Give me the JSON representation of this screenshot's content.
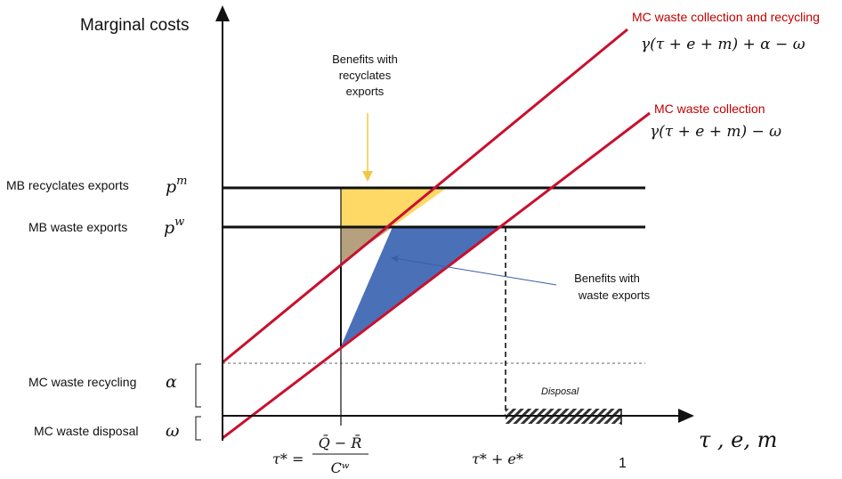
{
  "axes": {
    "y_title": "Marginal costs",
    "x_title": "τ , e, m"
  },
  "left_labels": {
    "mb_recyclates": "MB recyclates exports",
    "mb_waste": "MB waste exports",
    "mc_recycling": "MC waste recycling",
    "mc_disposal": "MC waste disposal"
  },
  "symbols": {
    "p_base": "p",
    "pm_sup": "m",
    "pw_sup": "w",
    "alpha": "α",
    "omega": "ω"
  },
  "curves": {
    "upper_title": "MC waste collection and recycling",
    "upper_formula": "γ(τ + e + m)  + α −  ω",
    "lower_title": "MC waste collection",
    "lower_formula": "γ(τ + e + m)  −  ω"
  },
  "callouts": {
    "recyclates_benefit": [
      "Benefits with",
      "recyclates",
      "exports"
    ],
    "waste_benefit": [
      "Benefits with",
      "waste exports"
    ],
    "disposal": "Disposal"
  },
  "x_ticks": {
    "tau_star_lhs": "τ* =",
    "frac_num": "Q̄ − R̄",
    "frac_den": "Cʷ",
    "tau_e_star": "τ* + e*",
    "one": "1"
  },
  "colors": {
    "curve": "#c8102e",
    "recyclates_area": "#ffd966",
    "overlap_area": "#b5a17e",
    "waste_area": "#4a70b8",
    "arrow_yellow": "#f2c744",
    "arrow_blue": "#3b5ea8"
  }
}
